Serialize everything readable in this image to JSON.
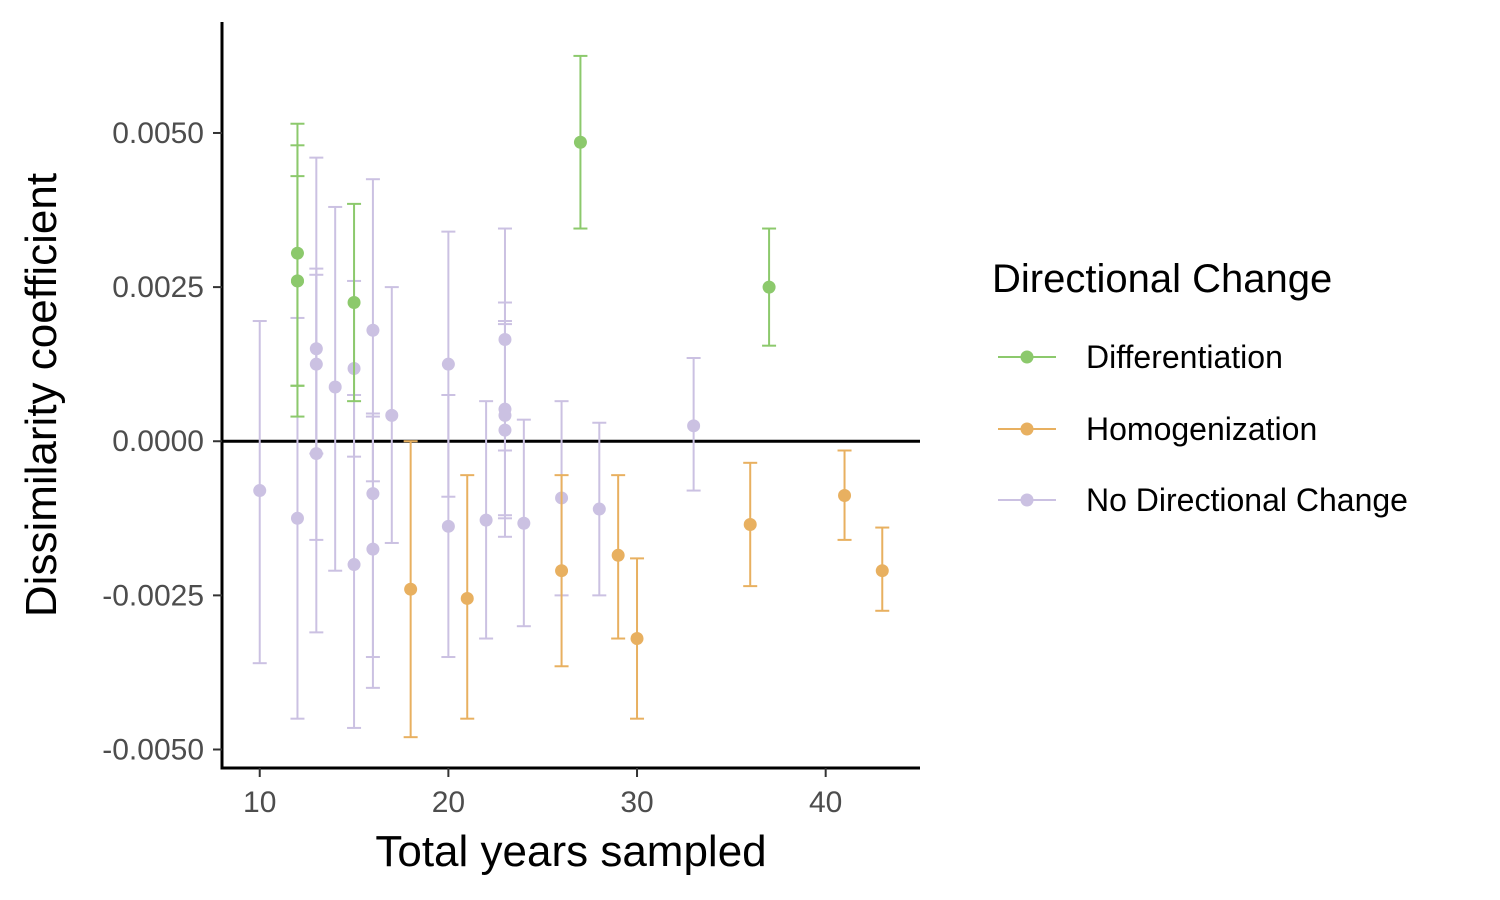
{
  "chart_data": {
    "type": "scatter",
    "xlabel": "Total years sampled",
    "ylabel": "Dissimilarity coefficient",
    "xlim": [
      8,
      45
    ],
    "ylim": [
      -0.0053,
      0.0068
    ],
    "x_ticks": [
      10,
      20,
      30,
      40
    ],
    "x_tick_labels": [
      "10",
      "20",
      "30",
      "40"
    ],
    "y_ticks": [
      -0.005,
      -0.0025,
      0,
      0.0025,
      0.005
    ],
    "y_tick_labels": [
      "-0.0050",
      "-0.0025",
      "0.0000",
      "0.0025",
      "0.0050"
    ],
    "reference_line_y": 0,
    "grid": false,
    "error_bars": true,
    "legend": {
      "title": "Directional Change",
      "position": "right",
      "entries": [
        "Differentiation",
        "Homogenization",
        "No Directional Change"
      ]
    },
    "series": [
      {
        "name": "Differentiation",
        "color": "#8cc96c",
        "points": [
          {
            "x": 12,
            "y": 0.00305,
            "lo": 0.0009,
            "hi": 0.00515
          },
          {
            "x": 12,
            "y": 0.0026,
            "lo": 0.0004,
            "hi": 0.0048
          },
          {
            "x": 12,
            "y": 0.0026,
            "lo": 0.0009,
            "hi": 0.0043
          },
          {
            "x": 15,
            "y": 0.00225,
            "lo": 0.00065,
            "hi": 0.00385
          },
          {
            "x": 27,
            "y": 0.00485,
            "lo": 0.00345,
            "hi": 0.00625
          },
          {
            "x": 37,
            "y": 0.0025,
            "lo": 0.00155,
            "hi": 0.00345
          }
        ]
      },
      {
        "name": "Homogenization",
        "color": "#e8b060",
        "points": [
          {
            "x": 18,
            "y": -0.0024,
            "lo": -0.0048,
            "hi": 0.0
          },
          {
            "x": 21,
            "y": -0.00255,
            "lo": -0.0045,
            "hi": -0.00055
          },
          {
            "x": 26,
            "y": -0.0021,
            "lo": -0.00365,
            "hi": -0.00055
          },
          {
            "x": 29,
            "y": -0.00185,
            "lo": -0.0032,
            "hi": -0.00055
          },
          {
            "x": 30,
            "y": -0.0032,
            "lo": -0.0045,
            "hi": -0.0019
          },
          {
            "x": 36,
            "y": -0.00135,
            "lo": -0.00235,
            "hi": -0.00035
          },
          {
            "x": 41,
            "y": -0.00088,
            "lo": -0.0016,
            "hi": -0.00015
          },
          {
            "x": 43,
            "y": -0.0021,
            "lo": -0.00275,
            "hi": -0.0014
          }
        ]
      },
      {
        "name": "No Directional Change",
        "color": "#cbc1e2",
        "points": [
          {
            "x": 10,
            "y": -0.0008,
            "lo": -0.0036,
            "hi": 0.00195
          },
          {
            "x": 12,
            "y": -0.00125,
            "lo": -0.0045,
            "hi": 0.002
          },
          {
            "x": 13,
            "y": 0.0015,
            "lo": -0.0016,
            "hi": 0.0046
          },
          {
            "x": 13,
            "y": 0.00125,
            "lo": -0.0002,
            "hi": 0.0027
          },
          {
            "x": 13,
            "y": -0.0002,
            "lo": -0.0031,
            "hi": 0.0028
          },
          {
            "x": 14,
            "y": 0.00088,
            "lo": -0.0021,
            "hi": 0.0038
          },
          {
            "x": 15,
            "y": 0.00118,
            "lo": -0.00025,
            "hi": 0.0026
          },
          {
            "x": 15,
            "y": -0.002,
            "lo": -0.00465,
            "hi": 0.00075
          },
          {
            "x": 16,
            "y": 0.0018,
            "lo": -0.00065,
            "hi": 0.00425
          },
          {
            "x": 16,
            "y": -0.00085,
            "lo": -0.0035,
            "hi": 0.00045
          },
          {
            "x": 16,
            "y": -0.00175,
            "lo": -0.004,
            "hi": 0.0004
          },
          {
            "x": 17,
            "y": 0.00042,
            "lo": -0.00165,
            "hi": 0.0025
          },
          {
            "x": 20,
            "y": 0.00125,
            "lo": -0.0009,
            "hi": 0.0034
          },
          {
            "x": 20,
            "y": -0.00138,
            "lo": -0.0035,
            "hi": 0.00075
          },
          {
            "x": 22,
            "y": -0.00128,
            "lo": -0.0032,
            "hi": 0.00065
          },
          {
            "x": 23,
            "y": 0.00165,
            "lo": -0.00015,
            "hi": 0.00345
          },
          {
            "x": 23,
            "y": 0.00052,
            "lo": -0.0012,
            "hi": 0.00225
          },
          {
            "x": 23,
            "y": 0.00042,
            "lo": -0.00125,
            "hi": 0.00195
          },
          {
            "x": 23,
            "y": 0.00018,
            "lo": -0.00155,
            "hi": 0.0019
          },
          {
            "x": 24,
            "y": -0.00133,
            "lo": -0.003,
            "hi": 0.00035
          },
          {
            "x": 26,
            "y": -0.00092,
            "lo": -0.0025,
            "hi": 0.00065
          },
          {
            "x": 28,
            "y": -0.0011,
            "lo": -0.0025,
            "hi": 0.0003
          },
          {
            "x": 33,
            "y": 0.00025,
            "lo": -0.0008,
            "hi": 0.00135
          }
        ]
      }
    ]
  }
}
